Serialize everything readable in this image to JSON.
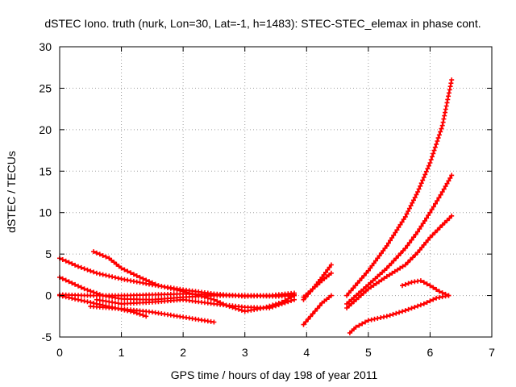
{
  "chart_data": {
    "type": "scatter",
    "title": "dSTEC Iono. truth (nurk, Lon=30, Lat=-1, h=1483): STEC-STEC_elemax in phase cont.",
    "xlabel": "GPS time / hours of day 198 of year 2011",
    "ylabel": "dSTEC  / TECUs",
    "xlim": [
      0,
      7
    ],
    "ylim": [
      -5,
      30
    ],
    "xticks": [
      "0",
      "1",
      "2",
      "3",
      "4",
      "5",
      "6",
      "7"
    ],
    "yticks": [
      "-5",
      "0",
      "5",
      "10",
      "15",
      "20",
      "25",
      "30"
    ],
    "grid": true,
    "legend": "none",
    "marker": "plus",
    "color": "#ff0000",
    "series": [
      {
        "x": [
          0.0,
          0.3,
          0.6,
          1.0,
          1.5,
          2.0,
          2.5,
          3.0,
          3.4,
          3.8
        ],
        "y": [
          4.5,
          3.5,
          2.7,
          2.0,
          1.3,
          0.7,
          0.2,
          -0.1,
          0.0,
          0.3
        ]
      },
      {
        "x": [
          0.0,
          0.2,
          0.4,
          0.7,
          1.0,
          1.5,
          2.0,
          2.5,
          3.0,
          3.4,
          3.8
        ],
        "y": [
          2.2,
          1.5,
          0.8,
          0.0,
          -0.4,
          -0.5,
          -0.2,
          0.0,
          0.0,
          0.0,
          0.1
        ]
      },
      {
        "x": [
          0.0,
          0.5,
          1.0,
          1.5,
          2.0,
          2.5,
          3.0,
          3.5,
          3.8
        ],
        "y": [
          0.1,
          0.0,
          0.0,
          0.1,
          0.2,
          0.1,
          0.0,
          -0.1,
          0.0
        ]
      },
      {
        "x": [
          0.0,
          0.3,
          0.6,
          0.9,
          1.2,
          1.4
        ],
        "y": [
          0.0,
          -0.5,
          -1.0,
          -1.5,
          -2.0,
          -2.5
        ]
      },
      {
        "x": [
          0.6,
          1.0,
          1.5,
          2.0,
          2.5,
          3.0,
          3.4,
          3.8
        ],
        "y": [
          -0.5,
          -1.0,
          -0.8,
          -0.5,
          -1.0,
          -1.4,
          -1.5,
          -0.5
        ]
      },
      {
        "x": [
          0.5,
          1.0,
          1.5,
          2.0,
          2.5
        ],
        "y": [
          -1.3,
          -1.6,
          -2.0,
          -2.6,
          -3.2
        ]
      },
      {
        "x": [
          0.55,
          0.8,
          1.0,
          1.3,
          1.6,
          2.0,
          2.5,
          2.7,
          3.0,
          3.3,
          3.6,
          3.8
        ],
        "y": [
          5.3,
          4.5,
          3.3,
          2.2,
          1.2,
          0.5,
          -0.5,
          -1.2,
          -1.9,
          -1.5,
          -0.8,
          0.0
        ]
      },
      {
        "x": [
          3.95,
          4.1,
          4.25,
          4.4
        ],
        "y": [
          -0.5,
          0.8,
          2.2,
          3.7
        ]
      },
      {
        "x": [
          3.95,
          4.1,
          4.25,
          4.4
        ],
        "y": [
          -0.2,
          0.8,
          1.8,
          2.7
        ]
      },
      {
        "x": [
          3.95,
          4.1,
          4.25,
          4.4
        ],
        "y": [
          -3.5,
          -2.2,
          -0.9,
          0.0
        ]
      },
      {
        "x": [
          4.65,
          5.0,
          5.3,
          5.6,
          5.8,
          6.0,
          6.2,
          6.35
        ],
        "y": [
          0.0,
          3.0,
          6.0,
          9.5,
          12.5,
          16.0,
          20.5,
          26.0
        ]
      },
      {
        "x": [
          4.65,
          5.0,
          5.3,
          5.6,
          5.8,
          6.0,
          6.2,
          6.35
        ],
        "y": [
          -1.0,
          1.3,
          3.3,
          5.7,
          7.7,
          10.0,
          12.5,
          14.5
        ]
      },
      {
        "x": [
          4.65,
          5.0,
          5.3,
          5.6,
          5.8,
          6.0,
          6.2,
          6.35
        ],
        "y": [
          -1.5,
          0.8,
          2.3,
          3.7,
          5.2,
          7.0,
          8.5,
          9.6
        ]
      },
      {
        "x": [
          4.7,
          4.8,
          5.0,
          5.3,
          5.6,
          5.9,
          6.1,
          6.3
        ],
        "y": [
          -4.5,
          -3.8,
          -3.0,
          -2.5,
          -1.8,
          -1.0,
          -0.3,
          0.0
        ]
      },
      {
        "x": [
          5.55,
          5.7,
          5.85,
          6.0,
          6.15,
          6.3
        ],
        "y": [
          1.2,
          1.6,
          1.8,
          1.2,
          0.5,
          0.0
        ]
      }
    ]
  }
}
